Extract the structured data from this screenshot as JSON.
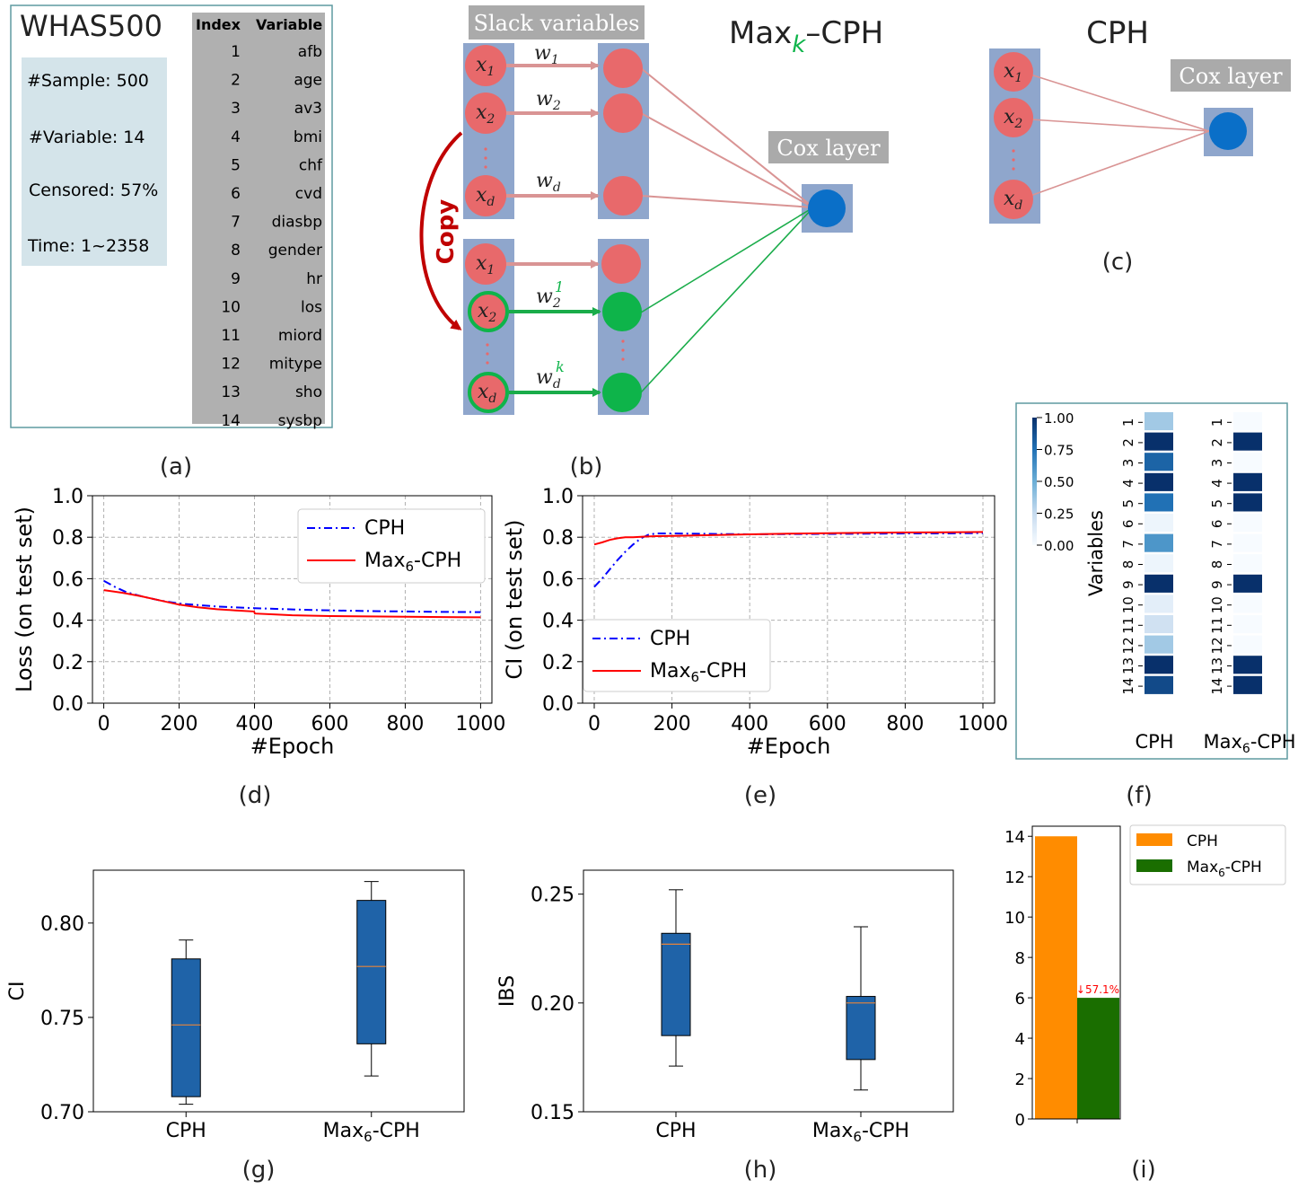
{
  "colors": {
    "node_red": "#e8696b",
    "node_green": "#0eb44a",
    "node_blue": "#0a6fc8",
    "panel_blue": "#8fa6cc",
    "edge_red": "#d99494",
    "edge_green": "#1aac4a",
    "copy_red": "#c00000",
    "gray_label": "#aaaaaa",
    "info_box": "#d4e4ea",
    "frame": "#5e9aa0",
    "cph_line": "#0000ff",
    "max_line": "#ff0000",
    "box_fill": "#1f63a8",
    "median": "#e8843a",
    "bar_cph": "#ff8c00",
    "bar_max": "#1a6e00"
  },
  "panel_a": {
    "title": "WHAS500",
    "stats": [
      "#Sample: 500",
      "#Variable: 14",
      "Censored: 57%",
      "Time: 1~2358"
    ],
    "table_header": [
      "Index",
      "Variable"
    ],
    "rows": [
      [
        "1",
        "afb"
      ],
      [
        "2",
        "age"
      ],
      [
        "3",
        "av3"
      ],
      [
        "4",
        "bmi"
      ],
      [
        "5",
        "chf"
      ],
      [
        "6",
        "cvd"
      ],
      [
        "7",
        "diasbp"
      ],
      [
        "8",
        "gender"
      ],
      [
        "9",
        "hr"
      ],
      [
        "10",
        "los"
      ],
      [
        "11",
        "miord"
      ],
      [
        "12",
        "mitype"
      ],
      [
        "13",
        "sho"
      ],
      [
        "14",
        "sysbp"
      ]
    ]
  },
  "panel_b": {
    "slack_label": "Slack variables",
    "title_prefix": "Max",
    "title_sub": "k",
    "title_suffix": "–CPH",
    "cox_label": "Cox layer",
    "copy_label": "Copy",
    "x": "x",
    "w": "w",
    "sub_1": "1",
    "sub_2": "2",
    "sub_d": "d",
    "sup_1": "1",
    "sup_k": "k"
  },
  "panel_c": {
    "title": "CPH",
    "cox_label": "Cox layer"
  },
  "captions": [
    "(a)",
    "(b)",
    "(c)",
    "(d)",
    "(e)",
    "(f)",
    "(g)",
    "(h)",
    "(i)"
  ],
  "chart_data": [
    {
      "type": "line",
      "panel": "d",
      "xlabel": "#Epoch",
      "ylabel": "Loss (on test set)",
      "xlim": [
        -30,
        1030
      ],
      "ylim": [
        0,
        1.0
      ],
      "xticks": [
        "0",
        "200",
        "400",
        "600",
        "800",
        "1000"
      ],
      "yticks": [
        "0.0",
        "0.2",
        "0.4",
        "0.6",
        "0.8",
        "1.0"
      ],
      "grid": true,
      "legend": "top-right",
      "series": [
        {
          "name": "CPH",
          "style": "dashdot",
          "x": [
            0,
            30,
            60,
            100,
            150,
            200,
            250,
            300,
            350,
            400,
            500,
            600,
            700,
            800,
            900,
            1000
          ],
          "y": [
            0.59,
            0.56,
            0.535,
            0.515,
            0.495,
            0.48,
            0.473,
            0.466,
            0.462,
            0.458,
            0.452,
            0.447,
            0.444,
            0.442,
            0.44,
            0.439
          ]
        },
        {
          "name": "Max6-CPH",
          "style": "solid",
          "x": [
            0,
            50,
            100,
            150,
            200,
            250,
            300,
            350,
            399,
            401,
            450,
            500,
            600,
            700,
            800,
            900,
            1000
          ],
          "y": [
            0.545,
            0.532,
            0.515,
            0.495,
            0.475,
            0.462,
            0.453,
            0.447,
            0.442,
            0.432,
            0.428,
            0.424,
            0.42,
            0.418,
            0.417,
            0.415,
            0.414
          ]
        }
      ]
    },
    {
      "type": "line",
      "panel": "e",
      "xlabel": "#Epoch",
      "ylabel": "CI (on test set)",
      "xlim": [
        -30,
        1030
      ],
      "ylim": [
        0,
        1.0
      ],
      "xticks": [
        "0",
        "200",
        "400",
        "600",
        "800",
        "1000"
      ],
      "yticks": [
        "0.0",
        "0.2",
        "0.4",
        "0.6",
        "0.8",
        "1.0"
      ],
      "grid": true,
      "legend": "bottom-left",
      "series": [
        {
          "name": "CPH",
          "style": "dashdot",
          "x": [
            0,
            20,
            40,
            60,
            80,
            100,
            120,
            140,
            160,
            200,
            300,
            400,
            500,
            600,
            700,
            800,
            900,
            1000
          ],
          "y": [
            0.56,
            0.6,
            0.645,
            0.69,
            0.73,
            0.765,
            0.795,
            0.812,
            0.818,
            0.818,
            0.816,
            0.814,
            0.815,
            0.816,
            0.817,
            0.818,
            0.818,
            0.82
          ]
        },
        {
          "name": "Max6-CPH",
          "style": "solid",
          "x": [
            0,
            20,
            40,
            60,
            80,
            100,
            130,
            160,
            200,
            300,
            400,
            500,
            600,
            700,
            800,
            900,
            1000
          ],
          "y": [
            0.765,
            0.775,
            0.787,
            0.795,
            0.8,
            0.8,
            0.803,
            0.805,
            0.806,
            0.81,
            0.814,
            0.817,
            0.819,
            0.821,
            0.823,
            0.824,
            0.825
          ]
        }
      ]
    },
    {
      "type": "heatmap",
      "panel": "f",
      "ylabel": "Variables",
      "rows": [
        "1",
        "2",
        "3",
        "4",
        "5",
        "6",
        "7",
        "8",
        "9",
        "10",
        "11",
        "12",
        "13",
        "14"
      ],
      "columns": [
        "CPH",
        "Max6-CPH"
      ],
      "colorbar_ticks": [
        "0.00",
        "0.25",
        "0.50",
        "0.75",
        "1.00"
      ],
      "values": {
        "CPH": [
          0.35,
          1.0,
          0.8,
          1.0,
          0.75,
          0.05,
          0.6,
          0.05,
          1.0,
          0.1,
          0.2,
          0.35,
          1.0,
          0.9
        ],
        "Max6-CPH": [
          0.0,
          1.0,
          0.0,
          1.0,
          1.0,
          0.0,
          0.0,
          0.0,
          1.0,
          0.0,
          0.0,
          0.0,
          1.0,
          1.0
        ]
      }
    },
    {
      "type": "box",
      "panel": "g",
      "ylabel": "CI",
      "categories": [
        "CPH",
        "Max6-CPH"
      ],
      "ylim": [
        0.7,
        0.828
      ],
      "yticks": [
        "0.70",
        "0.75",
        "0.80"
      ],
      "boxes": [
        {
          "min": 0.704,
          "q1": 0.708,
          "median": 0.746,
          "q3": 0.781,
          "max": 0.791
        },
        {
          "min": 0.719,
          "q1": 0.736,
          "median": 0.777,
          "q3": 0.812,
          "max": 0.822
        }
      ]
    },
    {
      "type": "box",
      "panel": "h",
      "ylabel": "IBS",
      "categories": [
        "CPH",
        "Max6-CPH"
      ],
      "ylim": [
        0.15,
        0.261
      ],
      "yticks": [
        "0.15",
        "0.20",
        "0.25"
      ],
      "boxes": [
        {
          "min": 0.171,
          "q1": 0.185,
          "median": 0.227,
          "q3": 0.232,
          "max": 0.252
        },
        {
          "min": 0.16,
          "q1": 0.174,
          "median": 0.2,
          "q3": 0.203,
          "max": 0.235
        }
      ]
    },
    {
      "type": "bar",
      "panel": "i",
      "series": [
        {
          "name": "CPH",
          "values": [
            14
          ]
        },
        {
          "name": "Max6-CPH",
          "values": [
            6
          ]
        }
      ],
      "ylim": [
        0,
        14.5
      ],
      "yticks": [
        "0",
        "2",
        "4",
        "6",
        "8",
        "10",
        "12",
        "14"
      ],
      "annotation": "↓57.1%",
      "legend": "outside-right"
    }
  ]
}
